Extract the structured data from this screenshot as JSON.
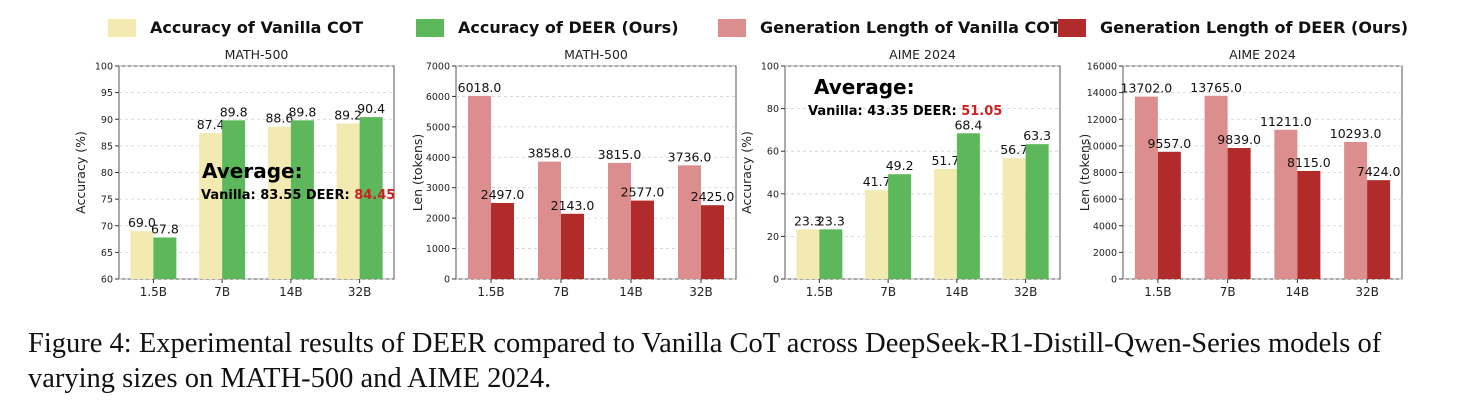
{
  "legend": [
    {
      "label": "Accuracy of Vanilla COT",
      "color": "#f2eab0"
    },
    {
      "label": "Accuracy of DEER (Ours)",
      "color": "#5cb85a"
    },
    {
      "label": "Generation Length of Vanilla COT",
      "color": "#dc8e8e"
    },
    {
      "label": "Generation Length of DEER (Ours)",
      "color": "#b22b2b"
    }
  ],
  "chart_data": [
    {
      "type": "bar",
      "title": "MATH-500",
      "xlabel": "",
      "ylabel": "Accuracy (%)",
      "categories": [
        "1.5B",
        "7B",
        "14B",
        "32B"
      ],
      "ylim": [
        60,
        100
      ],
      "yticks": [
        60,
        65,
        70,
        75,
        80,
        85,
        90,
        95,
        100
      ],
      "series": [
        {
          "name": "Vanilla COT",
          "color": "#f2eab0",
          "values": [
            69.0,
            87.4,
            88.6,
            89.2
          ]
        },
        {
          "name": "DEER (Ours)",
          "color": "#5cb85a",
          "values": [
            67.8,
            89.8,
            89.8,
            90.4
          ]
        }
      ],
      "annotation": {
        "heading": "Average:",
        "prefix": "Vanilla: 83.55 DEER: ",
        "highlight": "84.45",
        "highlight_color": "#cc2222"
      }
    },
    {
      "type": "bar",
      "title": "MATH-500",
      "xlabel": "",
      "ylabel": "Len (tokens)",
      "categories": [
        "1.5B",
        "7B",
        "14B",
        "32B"
      ],
      "ylim": [
        0,
        7000
      ],
      "yticks": [
        0,
        1000,
        2000,
        3000,
        4000,
        5000,
        6000,
        7000
      ],
      "series": [
        {
          "name": "Vanilla COT",
          "color": "#dc8e8e",
          "values": [
            6018.0,
            3858.0,
            3815.0,
            3736.0
          ]
        },
        {
          "name": "DEER (Ours)",
          "color": "#b22b2b",
          "values": [
            2497.0,
            2143.0,
            2577.0,
            2425.0
          ]
        }
      ]
    },
    {
      "type": "bar",
      "title": "AIME 2024",
      "xlabel": "",
      "ylabel": "Accuracy (%)",
      "categories": [
        "1.5B",
        "7B",
        "14B",
        "32B"
      ],
      "ylim": [
        0,
        100
      ],
      "yticks": [
        0,
        20,
        40,
        60,
        80,
        100
      ],
      "series": [
        {
          "name": "Vanilla COT",
          "color": "#f2eab0",
          "values": [
            23.3,
            41.7,
            51.7,
            56.7
          ]
        },
        {
          "name": "DEER (Ours)",
          "color": "#5cb85a",
          "values": [
            23.3,
            49.2,
            68.4,
            63.3
          ]
        }
      ],
      "annotation": {
        "heading": "Average:",
        "prefix": "Vanilla: 43.35 DEER: ",
        "highlight": "51.05",
        "highlight_color": "#cc2222"
      }
    },
    {
      "type": "bar",
      "title": "AIME 2024",
      "xlabel": "",
      "ylabel": "Len (tokens)",
      "categories": [
        "1.5B",
        "7B",
        "14B",
        "32B"
      ],
      "ylim": [
        0,
        16000
      ],
      "yticks": [
        0,
        2000,
        4000,
        6000,
        8000,
        10000,
        12000,
        14000,
        16000
      ],
      "series": [
        {
          "name": "Vanilla COT",
          "color": "#dc8e8e",
          "values": [
            13702.0,
            13765.0,
            11211.0,
            10293.0
          ]
        },
        {
          "name": "DEER (Ours)",
          "color": "#b22b2b",
          "values": [
            9557.0,
            9839.0,
            8115.0,
            7424.0
          ]
        }
      ]
    }
  ],
  "caption": "Figure 4: Experimental results of DEER compared to Vanilla CoT across DeepSeek-R1-Distill-Qwen-Series models of varying sizes on MATH-500 and AIME 2024."
}
